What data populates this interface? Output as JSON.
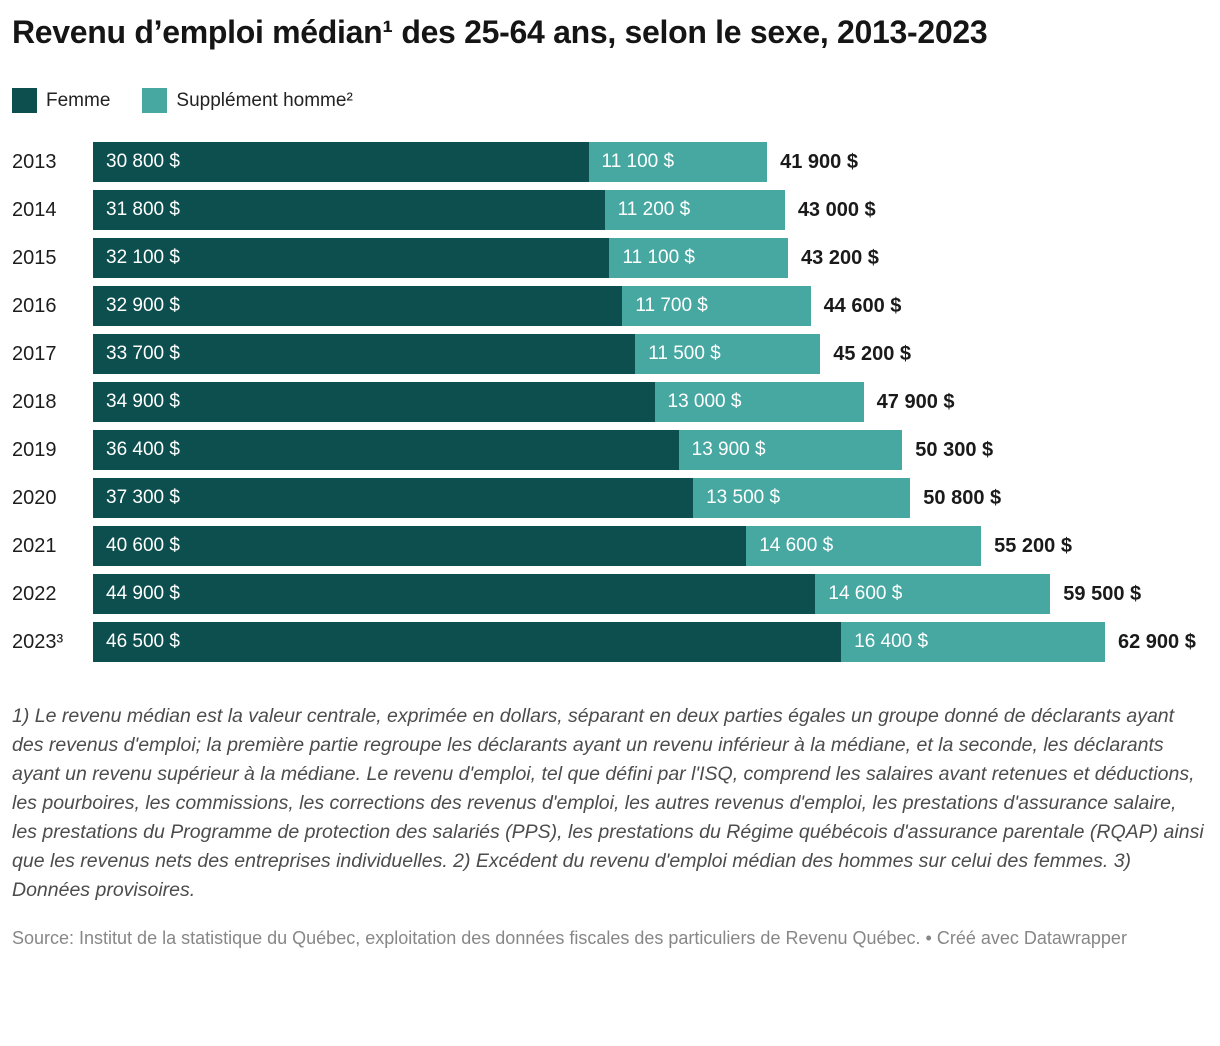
{
  "title": "Revenu d’emploi médian¹ des 25-64 ans, selon le sexe, 2013-2023",
  "legend": {
    "items": [
      {
        "label": "Femme",
        "color": "#0d4f4f"
      },
      {
        "label": "Supplément homme²",
        "color": "#47a8a2"
      }
    ]
  },
  "chart_data": {
    "type": "bar",
    "stacked": true,
    "orientation": "horizontal",
    "unit": "$",
    "value_format": "space-grouped dollars, e.g. 30 800 $",
    "xmax": 62900,
    "grid": false,
    "legend_position": "top-left",
    "categories": [
      "2013",
      "2014",
      "2015",
      "2016",
      "2017",
      "2018",
      "2019",
      "2020",
      "2021",
      "2022",
      "2023³"
    ],
    "series": [
      {
        "name": "Femme",
        "color": "#0d4f4f",
        "values": [
          30800,
          31800,
          32100,
          32900,
          33700,
          34900,
          36400,
          37300,
          40600,
          44900,
          46500
        ]
      },
      {
        "name": "Supplément homme²",
        "color": "#47a8a2",
        "values": [
          11100,
          11200,
          11100,
          11700,
          11500,
          13000,
          13900,
          13500,
          14600,
          14600,
          16400
        ]
      }
    ],
    "totals": [
      41900,
      43000,
      43200,
      44600,
      45200,
      47900,
      50300,
      50800,
      55200,
      59500,
      62900
    ]
  },
  "footnote": "1) Le revenu médian est la valeur centrale, exprimée en dollars, séparant en deux parties égales un groupe donné de déclarants ayant des revenus d'emploi; la première partie regroupe les déclarants ayant un revenu inférieur à la médiane, et la seconde, les déclarants ayant un revenu supérieur à la médiane. Le revenu d'emploi, tel que défini par l'ISQ, comprend les salaires avant retenues et déductions, les pourboires, les commissions, les corrections des revenus d'emploi, les autres revenus d'emploi, les prestations d'assurance salaire, les prestations du Programme de protection des salariés (PPS), les prestations du Régime québécois d'assurance parentale (RQAP) ainsi que les revenus nets des entreprises individuelles. 2) Excédent du revenu d'emploi médian des hommes sur celui des femmes. 3) Données provisoires.",
  "source": "Source: Institut de la statistique du Québec, exploitation des données fiscales des particuliers de Revenu Québec. • Créé avec Datawrapper"
}
